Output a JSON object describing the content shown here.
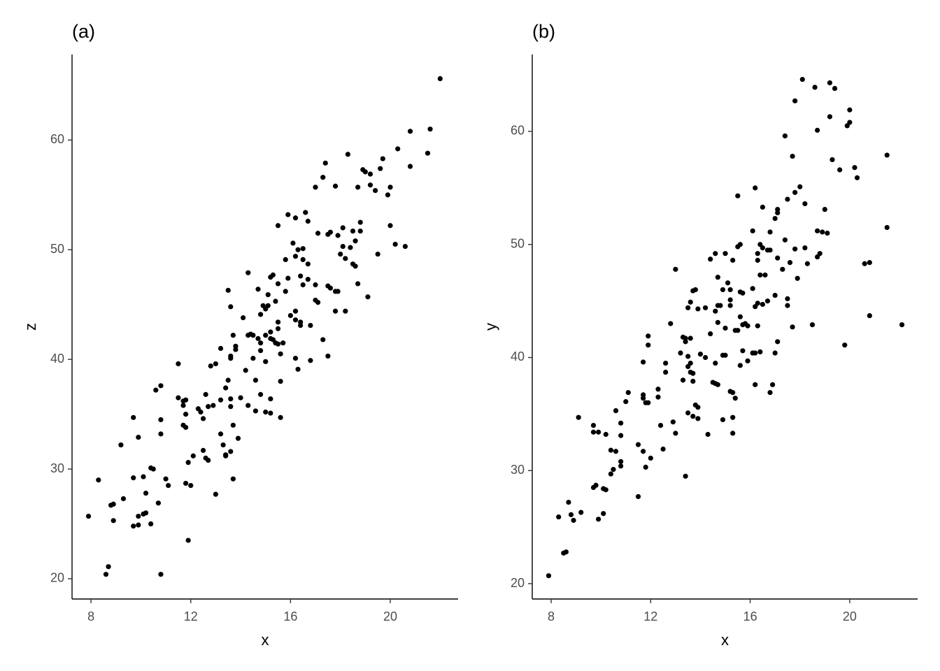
{
  "chart_data": [
    {
      "type": "scatter",
      "title": "(a)",
      "xlabel": "x",
      "ylabel": "z",
      "color": "#000000",
      "grid": false,
      "xlim": [
        7.24,
        22.72
      ],
      "ylim": [
        18.15,
        67.8
      ],
      "xticks": [
        8,
        12,
        16,
        20
      ],
      "yticks": [
        20,
        30,
        40,
        50,
        60
      ],
      "x": [
        7.9,
        8.3,
        8.6,
        8.7,
        8.8,
        8.9,
        8.9,
        9.3,
        9.2,
        9.7,
        9.7,
        9.7,
        9.9,
        9.9,
        9.9,
        10.1,
        10.2,
        10.1,
        10.2,
        10.4,
        10.5,
        10.4,
        10.6,
        10.7,
        10.8,
        10.8,
        10.8,
        10.8,
        11.0,
        11.1,
        11.5,
        11.5,
        11.7,
        11.8,
        11.7,
        11.7,
        11.8,
        11.8,
        11.8,
        12.0,
        11.9,
        11.9,
        12.1,
        12.3,
        12.4,
        12.5,
        12.5,
        12.6,
        12.6,
        12.7,
        12.7,
        12.9,
        12.8,
        13.0,
        13.0,
        13.2,
        13.2,
        13.2,
        13.3,
        13.4,
        13.4,
        13.4,
        13.5,
        13.6,
        13.6,
        13.6,
        13.5,
        13.6,
        13.6,
        13.6,
        13.7,
        13.7,
        13.8,
        13.8,
        13.7,
        13.9,
        14.0,
        14.1,
        14.2,
        14.3,
        14.3,
        14.3,
        14.4,
        14.5,
        14.5,
        14.6,
        14.6,
        14.7,
        14.7,
        14.8,
        14.8,
        14.8,
        14.8,
        14.9,
        15.0,
        15.0,
        15.0,
        15.0,
        15.1,
        15.1,
        15.2,
        15.2,
        15.3,
        15.2,
        15.2,
        15.2,
        15.2,
        15.3,
        15.4,
        15.4,
        15.5,
        15.5,
        15.5,
        15.5,
        15.5,
        15.6,
        15.6,
        15.6,
        15.7,
        15.8,
        15.8,
        15.9,
        15.9,
        16.1,
        16.2,
        16.0,
        16.2,
        16.2,
        16.2,
        16.3,
        16.2,
        16.3,
        16.4,
        16.4,
        16.4,
        16.5,
        16.5,
        16.5,
        16.6,
        16.7,
        16.7,
        16.7,
        16.8,
        16.8,
        17.0,
        17.0,
        17.1,
        17.0,
        17.1,
        17.3,
        17.3,
        17.4,
        17.5,
        17.5,
        17.5,
        17.6,
        17.6,
        17.8,
        17.8,
        17.9,
        17.8,
        17.9,
        18.0,
        18.1,
        18.1,
        18.2,
        18.2,
        18.3,
        18.4,
        18.5,
        18.5,
        18.6,
        18.6,
        18.7,
        18.7,
        18.8,
        18.8,
        18.9,
        19.0,
        19.1,
        19.2,
        19.2,
        19.4,
        19.5,
        19.6,
        19.7,
        19.9,
        20.0,
        20.0,
        20.2,
        20.3,
        20.6,
        20.8,
        20.8,
        21.5,
        21.6,
        22.0
      ],
      "values": [
        25.7,
        29.0,
        20.4,
        21.1,
        26.7,
        26.8,
        25.3,
        27.3,
        32.2,
        34.7,
        29.2,
        24.8,
        25.7,
        24.9,
        32.9,
        25.9,
        26.0,
        29.3,
        27.8,
        30.1,
        30.0,
        25.0,
        37.2,
        26.9,
        37.6,
        34.5,
        33.2,
        20.4,
        29.1,
        28.5,
        39.6,
        36.5,
        36.2,
        36.3,
        35.8,
        34.0,
        33.8,
        35.0,
        28.7,
        28.5,
        23.5,
        30.6,
        31.2,
        35.5,
        35.2,
        34.6,
        31.7,
        36.8,
        31.0,
        30.8,
        35.7,
        35.8,
        39.4,
        39.6,
        27.7,
        36.3,
        41.0,
        33.2,
        32.2,
        37.4,
        31.3,
        31.2,
        46.3,
        44.8,
        40.3,
        40.1,
        38.1,
        36.4,
        35.7,
        31.6,
        29.1,
        42.2,
        41.2,
        40.9,
        34.0,
        32.8,
        36.5,
        43.8,
        39.0,
        47.9,
        35.8,
        42.2,
        42.3,
        42.2,
        40.1,
        38.1,
        35.3,
        46.4,
        41.9,
        41.5,
        40.8,
        36.8,
        44.1,
        44.9,
        44.6,
        42.2,
        39.8,
        35.2,
        45.9,
        44.9,
        47.5,
        47.5,
        47.7,
        42.5,
        41.9,
        36.4,
        35.1,
        41.8,
        45.3,
        41.5,
        42.8,
        43.4,
        52.2,
        46.9,
        41.4,
        40.5,
        38.0,
        34.7,
        41.5,
        46.2,
        49.1,
        47.4,
        53.2,
        50.6,
        49.4,
        44.0,
        44.4,
        43.6,
        40.1,
        39.1,
        52.9,
        50.0,
        43.1,
        43.4,
        47.6,
        46.8,
        49.1,
        50.1,
        53.4,
        52.6,
        48.7,
        47.3,
        39.9,
        43.1,
        55.7,
        45.4,
        45.2,
        46.8,
        51.5,
        56.6,
        41.8,
        57.9,
        40.3,
        51.4,
        46.7,
        46.5,
        51.6,
        55.8,
        46.2,
        46.2,
        44.4,
        51.3,
        49.6,
        50.3,
        52.0,
        44.4,
        49.2,
        58.7,
        50.2,
        51.7,
        48.7,
        48.5,
        50.8,
        46.9,
        55.7,
        52.5,
        51.7,
        57.3,
        57.1,
        45.7,
        55.9,
        56.9,
        55.4,
        49.6,
        57.4,
        58.3,
        55.0,
        55.7,
        52.2,
        50.5,
        59.2,
        50.3,
        57.6,
        60.8,
        58.8,
        61.0,
        65.6
      ]
    },
    {
      "type": "scatter",
      "title": "(b)",
      "xlabel": "x",
      "ylabel": "y",
      "color": "#000000",
      "grid": false,
      "xlim": [
        7.24,
        22.73
      ],
      "ylim": [
        18.64,
        66.8
      ],
      "xticks": [
        8,
        12,
        16,
        20
      ],
      "yticks": [
        20,
        30,
        40,
        50,
        60
      ],
      "x": [
        7.9,
        8.3,
        8.5,
        8.6,
        8.7,
        8.8,
        8.9,
        9.1,
        9.2,
        9.7,
        9.7,
        9.8,
        9.7,
        9.9,
        9.9,
        10.1,
        10.1,
        10.2,
        10.2,
        10.4,
        10.6,
        10.4,
        10.5,
        10.6,
        10.8,
        10.8,
        10.8,
        10.8,
        11.0,
        11.1,
        11.5,
        11.5,
        11.7,
        11.7,
        11.7,
        11.7,
        11.8,
        11.9,
        11.8,
        11.9,
        11.9,
        12.0,
        12.3,
        12.3,
        12.4,
        12.5,
        12.6,
        12.6,
        12.8,
        12.9,
        13.0,
        13.0,
        13.2,
        13.3,
        13.3,
        13.4,
        13.4,
        13.4,
        13.5,
        13.5,
        13.6,
        13.5,
        13.5,
        13.6,
        13.7,
        13.6,
        13.7,
        13.6,
        13.7,
        13.7,
        13.8,
        13.8,
        13.9,
        13.9,
        13.9,
        14.0,
        14.2,
        14.2,
        14.3,
        14.4,
        14.4,
        14.5,
        14.6,
        14.6,
        14.6,
        14.6,
        14.7,
        14.7,
        14.8,
        14.7,
        14.7,
        14.9,
        14.9,
        15.0,
        14.9,
        15.0,
        15.0,
        15.1,
        15.2,
        15.2,
        15.2,
        15.2,
        15.3,
        15.3,
        15.3,
        15.3,
        15.4,
        15.5,
        15.4,
        15.5,
        15.5,
        15.6,
        15.6,
        15.6,
        15.6,
        15.7,
        15.7,
        15.7,
        15.8,
        15.9,
        15.9,
        16.1,
        16.1,
        16.2,
        16.1,
        16.2,
        16.2,
        16.2,
        16.3,
        16.3,
        16.3,
        16.3,
        16.4,
        16.4,
        16.4,
        16.5,
        16.5,
        16.5,
        16.6,
        16.7,
        16.7,
        16.8,
        16.8,
        16.8,
        16.9,
        17.0,
        17.0,
        17.1,
        17.1,
        17.1,
        17.0,
        17.1,
        17.3,
        17.4,
        17.4,
        17.5,
        17.5,
        17.5,
        17.6,
        17.7,
        17.7,
        17.8,
        17.8,
        17.8,
        17.9,
        18.0,
        18.1,
        18.2,
        18.2,
        18.3,
        18.5,
        18.6,
        18.7,
        18.7,
        18.8,
        18.7,
        18.9,
        19.0,
        19.1,
        19.2,
        19.2,
        19.3,
        19.4,
        19.6,
        19.8,
        19.9,
        20.0,
        20.0,
        20.2,
        20.3,
        20.6,
        20.8,
        20.8,
        21.5,
        21.5,
        22.1
      ],
      "values": [
        20.7,
        25.9,
        22.7,
        22.8,
        27.2,
        26.1,
        25.6,
        34.7,
        26.3,
        34.0,
        33.4,
        28.7,
        28.5,
        25.7,
        33.4,
        26.2,
        28.4,
        28.3,
        33.2,
        31.8,
        31.7,
        29.7,
        30.1,
        35.3,
        30.8,
        30.4,
        34.2,
        33.1,
        36.1,
        36.9,
        32.3,
        27.7,
        39.6,
        36.7,
        36.4,
        31.7,
        36.0,
        36.0,
        30.3,
        41.9,
        41.1,
        31.1,
        36.5,
        37.2,
        34.0,
        31.9,
        39.5,
        38.7,
        43.0,
        34.3,
        33.3,
        47.8,
        40.4,
        38.0,
        41.8,
        41.7,
        41.4,
        29.5,
        44.4,
        40.1,
        39.5,
        39.2,
        35.1,
        38.7,
        38.6,
        41.7,
        37.9,
        44.9,
        34.8,
        45.9,
        46.0,
        35.8,
        35.6,
        34.6,
        44.3,
        40.3,
        44.4,
        40.0,
        33.2,
        48.7,
        42.1,
        37.8,
        37.7,
        49.2,
        39.5,
        44.1,
        47.1,
        44.6,
        44.6,
        43.1,
        37.6,
        40.2,
        46.0,
        49.2,
        34.5,
        42.6,
        40.2,
        46.6,
        46.0,
        45.1,
        44.6,
        37.0,
        36.9,
        34.7,
        33.3,
        48.6,
        42.4,
        42.4,
        36.4,
        54.3,
        49.8,
        50.0,
        43.6,
        39.3,
        45.8,
        45.7,
        40.6,
        42.9,
        43.0,
        42.8,
        39.7,
        46.1,
        40.4,
        40.4,
        51.2,
        55.0,
        37.6,
        44.5,
        44.8,
        48.6,
        49.2,
        42.8,
        40.5,
        50.0,
        47.3,
        53.3,
        49.7,
        44.7,
        47.3,
        49.5,
        45.0,
        51.1,
        49.5,
        36.9,
        37.6,
        52.3,
        45.5,
        53.1,
        52.8,
        41.4,
        40.4,
        48.8,
        47.8,
        50.4,
        59.6,
        54.0,
        45.2,
        44.6,
        48.4,
        57.8,
        42.7,
        62.7,
        54.6,
        49.6,
        47.0,
        55.1,
        64.6,
        49.7,
        53.6,
        48.3,
        42.9,
        63.9,
        60.1,
        48.9,
        49.2,
        51.2,
        51.1,
        53.1,
        51.0,
        64.3,
        61.3,
        57.5,
        63.8,
        56.6,
        41.1,
        60.5,
        60.8,
        61.9,
        56.8,
        55.9,
        48.3,
        48.4,
        43.7,
        57.9,
        51.5,
        42.9
      ]
    }
  ]
}
